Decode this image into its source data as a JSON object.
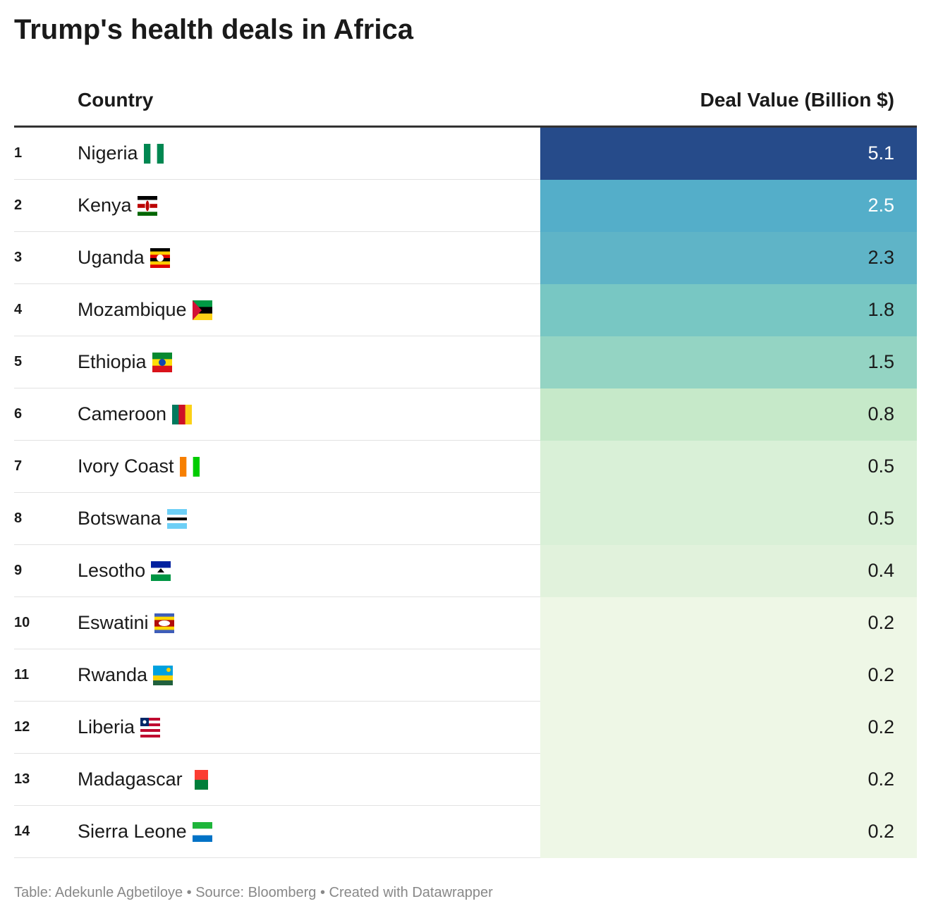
{
  "title": "Trump's health deals in Africa",
  "table": {
    "columns": [
      "Country",
      "Deal Value (Billion $)"
    ],
    "rows": [
      {
        "rank": 1,
        "country": "Nigeria",
        "value": 5.1,
        "color": "#264b8a"
      },
      {
        "rank": 2,
        "country": "Kenya",
        "value": 2.5,
        "color": "#54aec9"
      },
      {
        "rank": 3,
        "country": "Uganda",
        "value": 2.3,
        "color": "#5fb4c7"
      },
      {
        "rank": 4,
        "country": "Mozambique",
        "value": 1.8,
        "color": "#78c7c3"
      },
      {
        "rank": 5,
        "country": "Ethiopia",
        "value": 1.5,
        "color": "#94d4c3"
      },
      {
        "rank": 6,
        "country": "Cameroon",
        "value": 0.8,
        "color": "#c6e9c9"
      },
      {
        "rank": 7,
        "country": "Ivory Coast",
        "value": 0.5,
        "color": "#d9f0d7"
      },
      {
        "rank": 8,
        "country": "Botswana",
        "value": 0.5,
        "color": "#d9f0d7"
      },
      {
        "rank": 9,
        "country": "Lesotho",
        "value": 0.4,
        "color": "#e1f2dc"
      },
      {
        "rank": 10,
        "country": "Eswatini",
        "value": 0.2,
        "color": "#eef7e6"
      },
      {
        "rank": 11,
        "country": "Rwanda",
        "value": 0.2,
        "color": "#eef7e6"
      },
      {
        "rank": 12,
        "country": "Liberia",
        "value": 0.2,
        "color": "#eef7e6"
      },
      {
        "rank": 13,
        "country": "Madagascar",
        "value": 0.2,
        "color": "#eef7e6"
      },
      {
        "rank": 14,
        "country": "Sierra Leone",
        "value": 0.2,
        "color": "#eef7e6"
      }
    ]
  },
  "footer": "Table: Adekunle Agbetiloye • Source: Bloomberg • Created with Datawrapper"
}
